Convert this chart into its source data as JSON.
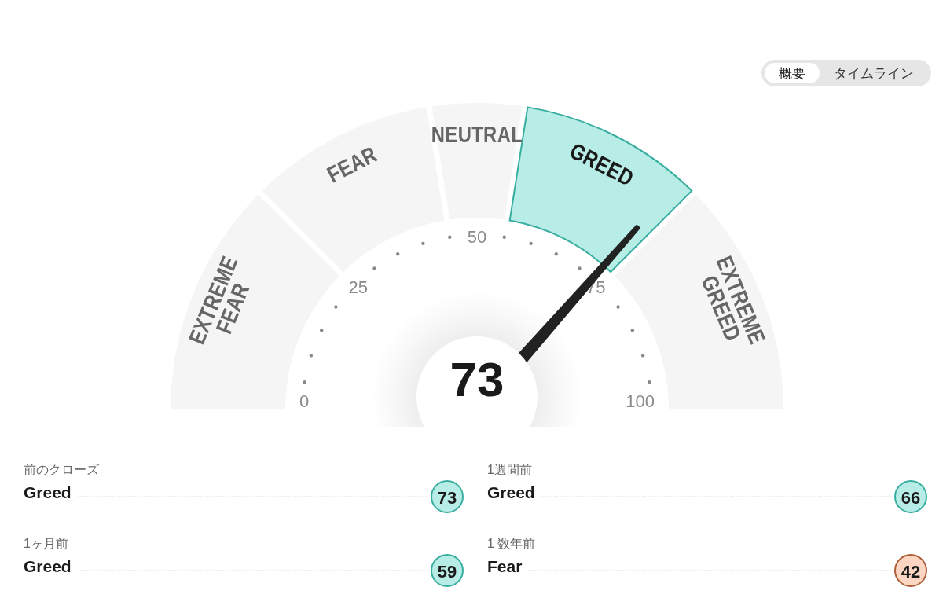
{
  "chart_data": [
    {
      "type": "other",
      "annotations": [
        "概要",
        "タイムライン"
      ]
    },
    {
      "type": "donut",
      "categories": [
        "EXTREME FEAR",
        "FEAR",
        "NEUTRAL",
        "GREED",
        "EXTREME GREED"
      ],
      "values": [
        25,
        20,
        10,
        20,
        25
      ],
      "colors": [
        "#f5f5f5",
        "#f5f5f5",
        "#f5f5f5",
        "#b8ece6",
        "#f5f5f5"
      ],
      "needle": "GREED",
      "annotations": [
        "73",
        "0",
        "25",
        "50",
        "75",
        "100"
      ]
    },
    {
      "type": "other",
      "categories": [
        "前のクローズ"
      ],
      "values": [
        73
      ],
      "colors": [
        "#b8ece6"
      ],
      "data_labels": true,
      "annotations": [
        {
          "text": "Greed",
          "x": "前のクローズ"
        }
      ]
    },
    {
      "type": "other",
      "categories": [
        "1週間前"
      ],
      "values": [
        66
      ],
      "colors": [
        "#b8ece6"
      ],
      "data_labels": true,
      "annotations": [
        {
          "text": "Greed",
          "x": "1週間前"
        }
      ]
    },
    {
      "type": "other",
      "categories": [
        "1ヶ月前"
      ],
      "values": [
        59
      ],
      "colors": [
        "#b8ece6"
      ],
      "data_labels": true,
      "annotations": [
        {
          "text": "Greed",
          "x": "1ヶ月前"
        }
      ]
    },
    {
      "type": "other",
      "categories": [
        "1 数年前"
      ],
      "values": [
        42
      ],
      "colors": [
        "#fcd6c3"
      ],
      "data_labels": true,
      "annotations": [
        {
          "text": "Fear",
          "x": "1 数年前"
        }
      ]
    }
  ]
}
